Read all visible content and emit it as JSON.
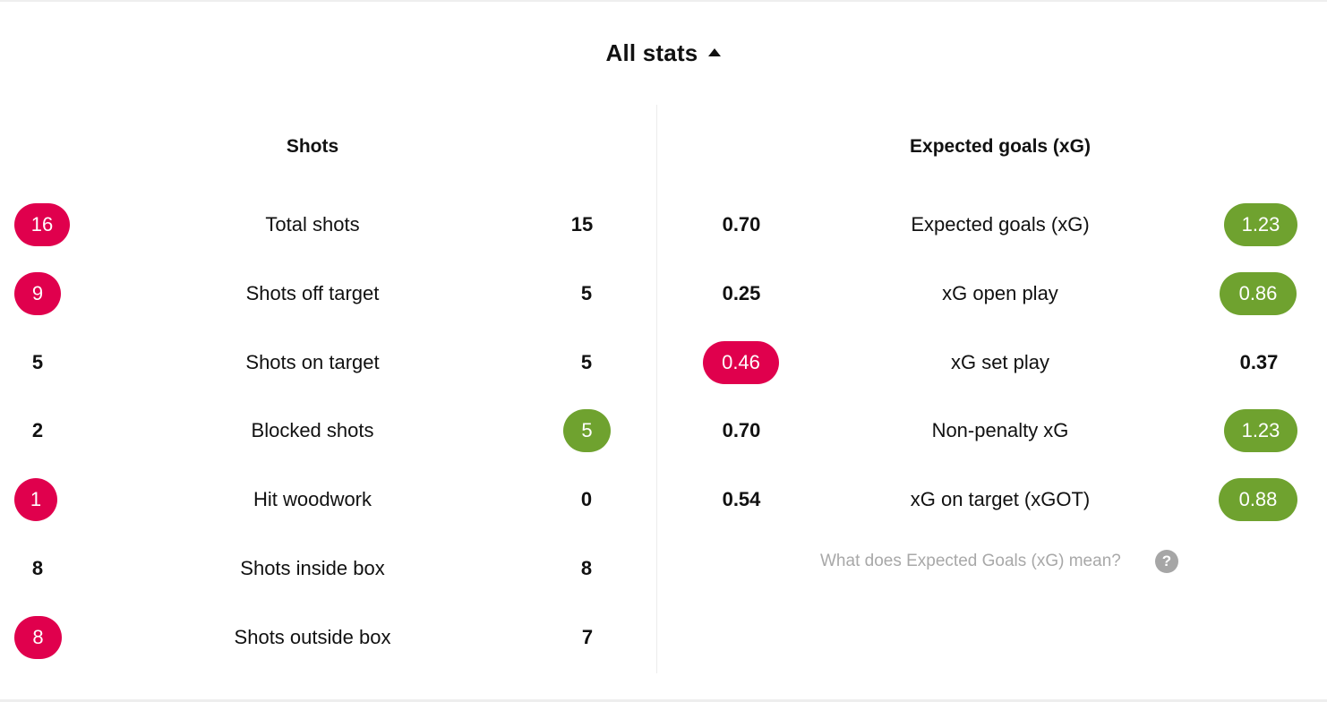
{
  "header": {
    "title": "All stats",
    "toggle_icon": "caret-up-icon"
  },
  "colors": {
    "highlight_red": "#e0004d",
    "highlight_green": "#6fa22f",
    "muted_text": "#a8a8a8"
  },
  "shots": {
    "title": "Shots",
    "rows": [
      {
        "label": "Total shots",
        "home": "16",
        "away": "15",
        "highlight": "home",
        "color": "red"
      },
      {
        "label": "Shots off target",
        "home": "9",
        "away": "5",
        "highlight": "home",
        "color": "red"
      },
      {
        "label": "Shots on target",
        "home": "5",
        "away": "5",
        "highlight": "none"
      },
      {
        "label": "Blocked shots",
        "home": "2",
        "away": "5",
        "highlight": "away",
        "color": "green"
      },
      {
        "label": "Hit woodwork",
        "home": "1",
        "away": "0",
        "highlight": "home",
        "color": "red"
      },
      {
        "label": "Shots inside box",
        "home": "8",
        "away": "8",
        "highlight": "none"
      },
      {
        "label": "Shots outside box",
        "home": "8",
        "away": "7",
        "highlight": "home",
        "color": "red"
      }
    ]
  },
  "xg": {
    "title": "Expected goals (xG)",
    "rows": [
      {
        "label": "Expected goals (xG)",
        "home": "0.70",
        "away": "1.23",
        "highlight": "away",
        "color": "green"
      },
      {
        "label": "xG open play",
        "home": "0.25",
        "away": "0.86",
        "highlight": "away",
        "color": "green"
      },
      {
        "label": "xG set play",
        "home": "0.46",
        "away": "0.37",
        "highlight": "home",
        "color": "red"
      },
      {
        "label": "Non-penalty xG",
        "home": "0.70",
        "away": "1.23",
        "highlight": "away",
        "color": "green"
      },
      {
        "label": "xG on target (xGOT)",
        "home": "0.54",
        "away": "0.88",
        "highlight": "away",
        "color": "green"
      }
    ],
    "help_text": "What does Expected Goals (xG) mean?",
    "help_icon": "question-mark-icon",
    "help_icon_glyph": "?"
  }
}
